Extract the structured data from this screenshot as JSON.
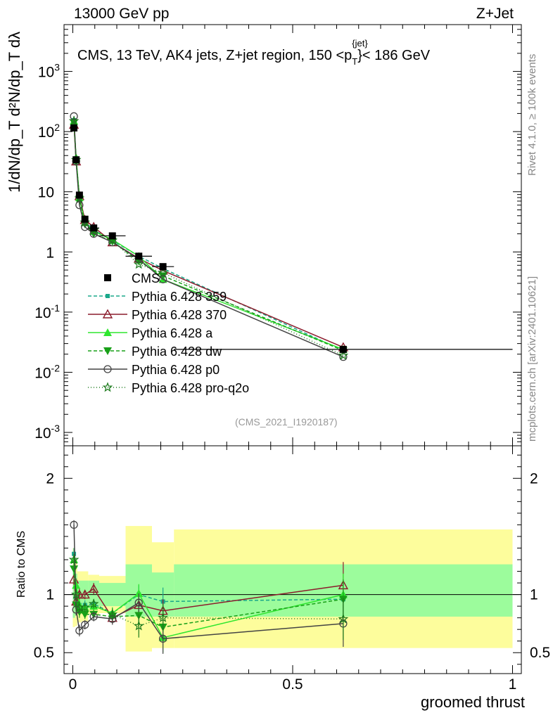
{
  "header": {
    "left": "13000 GeV pp",
    "right": "Z+Jet",
    "caption": "CMS, 13 TeV, AK4 jets, Z+jet region, 150 <p",
    "caption_sup": "{jet}",
    "caption_sub": "T",
    "caption_end": "}< 186 GeV"
  },
  "side": {
    "rivet": "Rivet 4.1.0, ≥ 100k events",
    "mcplots": "mcplots.cern.ch [arXiv:2401.10621]"
  },
  "analysis_id": "(CMS_2021_I1920187)",
  "y_label_main": "1/dN/dp_T d²N/dp_T dλ",
  "chart_data": [
    {
      "type": "line",
      "panel": "main",
      "yscale": "log",
      "xlabel": "groomed thrust",
      "ylabel": "1/dN/dp_T d²N/dp_T dλ",
      "xlim": [
        -0.02,
        1.02
      ],
      "ylim": [
        0.0006,
        6000
      ],
      "x_ticks": [
        0,
        0.5,
        1
      ],
      "x_tick_labels": [
        "0",
        "0.5",
        "1"
      ],
      "y_tick_labels": [
        "10^-3",
        "10^-2",
        "10^-1",
        "1",
        "10",
        "10^2",
        "10^3"
      ],
      "y_tick_values": [
        0.001,
        0.01,
        0.1,
        1,
        10,
        100,
        1000
      ],
      "bins": [
        [
          0,
          0.005
        ],
        [
          0.005,
          0.01
        ],
        [
          0.01,
          0.02
        ],
        [
          0.02,
          0.035
        ],
        [
          0.035,
          0.06
        ],
        [
          0.06,
          0.12
        ],
        [
          0.12,
          0.18
        ],
        [
          0.18,
          0.23
        ],
        [
          0.23,
          1.0
        ]
      ],
      "x": [
        0.0025,
        0.0075,
        0.015,
        0.0275,
        0.0475,
        0.09,
        0.15,
        0.205,
        0.615
      ],
      "data": {
        "name": "CMS",
        "values": [
          115,
          34,
          8.8,
          3.5,
          2.5,
          1.85,
          0.85,
          0.57,
          0.024
        ]
      },
      "series": [
        {
          "name": "Pythia 6.428 359",
          "color": "#1aa88a",
          "dash": "5,3",
          "marker": "square-small",
          "values": [
            155,
            33,
            8.0,
            3.2,
            2.3,
            1.55,
            0.85,
            0.53,
            0.023
          ]
        },
        {
          "name": "Pythia 6.428 370",
          "color": "#8b1c2c",
          "dash": "",
          "marker": "triangle-open",
          "values": [
            130,
            32,
            8.5,
            3.4,
            2.6,
            1.45,
            0.78,
            0.49,
            0.026
          ]
        },
        {
          "name": "Pythia 6.428 a",
          "color": "#2ee62e",
          "dash": "",
          "marker": "triangle",
          "values": [
            150,
            37,
            8.0,
            3.1,
            2.2,
            1.6,
            0.85,
            0.35,
            0.024
          ]
        },
        {
          "name": "Pythia 6.428 dw",
          "color": "#18a018",
          "dash": "5,3",
          "marker": "triangle-down",
          "values": [
            140,
            31,
            7.5,
            2.9,
            2.0,
            1.5,
            0.7,
            0.4,
            0.023
          ]
        },
        {
          "name": "Pythia 6.428 p0",
          "color": "#444444",
          "dash": "",
          "marker": "circle-open",
          "values": [
            180,
            32,
            6.0,
            2.6,
            2.0,
            1.45,
            0.76,
            0.35,
            0.018
          ]
        },
        {
          "name": "Pythia 6.428 pro-q2o",
          "color": "#1c7a1c",
          "dash": "1,3",
          "marker": "star",
          "values": [
            150,
            34,
            7.8,
            3.1,
            2.3,
            1.55,
            0.62,
            0.45,
            0.019
          ]
        }
      ]
    },
    {
      "type": "line",
      "panel": "ratio",
      "xlabel": "groomed thrust",
      "ylabel": "Ratio to CMS",
      "xlim": [
        -0.02,
        1.02
      ],
      "ylim": [
        0.32,
        2.28
      ],
      "y_tick_values": [
        0.5,
        1,
        2
      ],
      "y_tick_labels": [
        "0.5",
        "1",
        "2"
      ],
      "band_inner": [
        [
          0.8,
          1.2
        ],
        [
          0.82,
          1.18
        ],
        [
          0.85,
          1.12
        ],
        [
          0.86,
          1.12
        ],
        [
          0.88,
          1.12
        ],
        [
          0.9,
          1.1
        ],
        [
          0.81,
          1.26
        ],
        [
          0.81,
          1.19
        ],
        [
          0.81,
          1.26
        ]
      ],
      "band_outer": [
        [
          0.72,
          1.4
        ],
        [
          0.73,
          1.3
        ],
        [
          0.76,
          1.2
        ],
        [
          0.77,
          1.2
        ],
        [
          0.83,
          1.17
        ],
        [
          0.84,
          1.16
        ],
        [
          0.51,
          1.59
        ],
        [
          0.54,
          1.45
        ],
        [
          0.54,
          1.56
        ]
      ],
      "series": [
        {
          "name": "Pythia 6.428 359",
          "values": [
            1.35,
            0.97,
            0.91,
            0.91,
            0.92,
            0.84,
            1.0,
            0.94,
            0.96
          ],
          "err": [
            0.05,
            0.05,
            0.05,
            0.04,
            0.04,
            0.05,
            0.08,
            0.12,
            0.15
          ]
        },
        {
          "name": "Pythia 6.428 370",
          "values": [
            1.13,
            0.94,
            1.0,
            1.0,
            1.05,
            0.8,
            0.91,
            0.86,
            1.08
          ],
          "err": [
            0.05,
            0.05,
            0.05,
            0.04,
            0.05,
            0.05,
            0.07,
            0.1,
            0.2
          ]
        },
        {
          "name": "Pythia 6.428 a",
          "values": [
            1.3,
            1.08,
            0.91,
            0.89,
            0.9,
            0.84,
            1.01,
            0.63,
            1.0
          ],
          "err": [
            0.05,
            0.05,
            0.05,
            0.04,
            0.04,
            0.05,
            0.08,
            0.13,
            0.18
          ]
        },
        {
          "name": "Pythia 6.428 dw",
          "values": [
            1.22,
            0.91,
            0.85,
            0.83,
            0.83,
            0.81,
            0.82,
            0.72,
            0.96
          ],
          "err": [
            0.05,
            0.05,
            0.05,
            0.04,
            0.04,
            0.05,
            0.08,
            0.13,
            0.17
          ]
        },
        {
          "name": "Pythia 6.428 p0",
          "values": [
            1.6,
            0.87,
            0.69,
            0.74,
            0.81,
            0.79,
            0.93,
            0.62,
            0.75
          ],
          "err": [
            0.04,
            0.05,
            0.05,
            0.04,
            0.04,
            0.05,
            0.08,
            0.13,
            0.2
          ]
        },
        {
          "name": "Pythia 6.428 pro-q2o",
          "values": [
            1.3,
            1.0,
            0.89,
            0.89,
            0.92,
            0.83,
            0.73,
            0.8,
            0.79
          ],
          "err": [
            0.05,
            0.05,
            0.05,
            0.04,
            0.04,
            0.05,
            0.1,
            0.12,
            0.18
          ]
        }
      ]
    }
  ]
}
